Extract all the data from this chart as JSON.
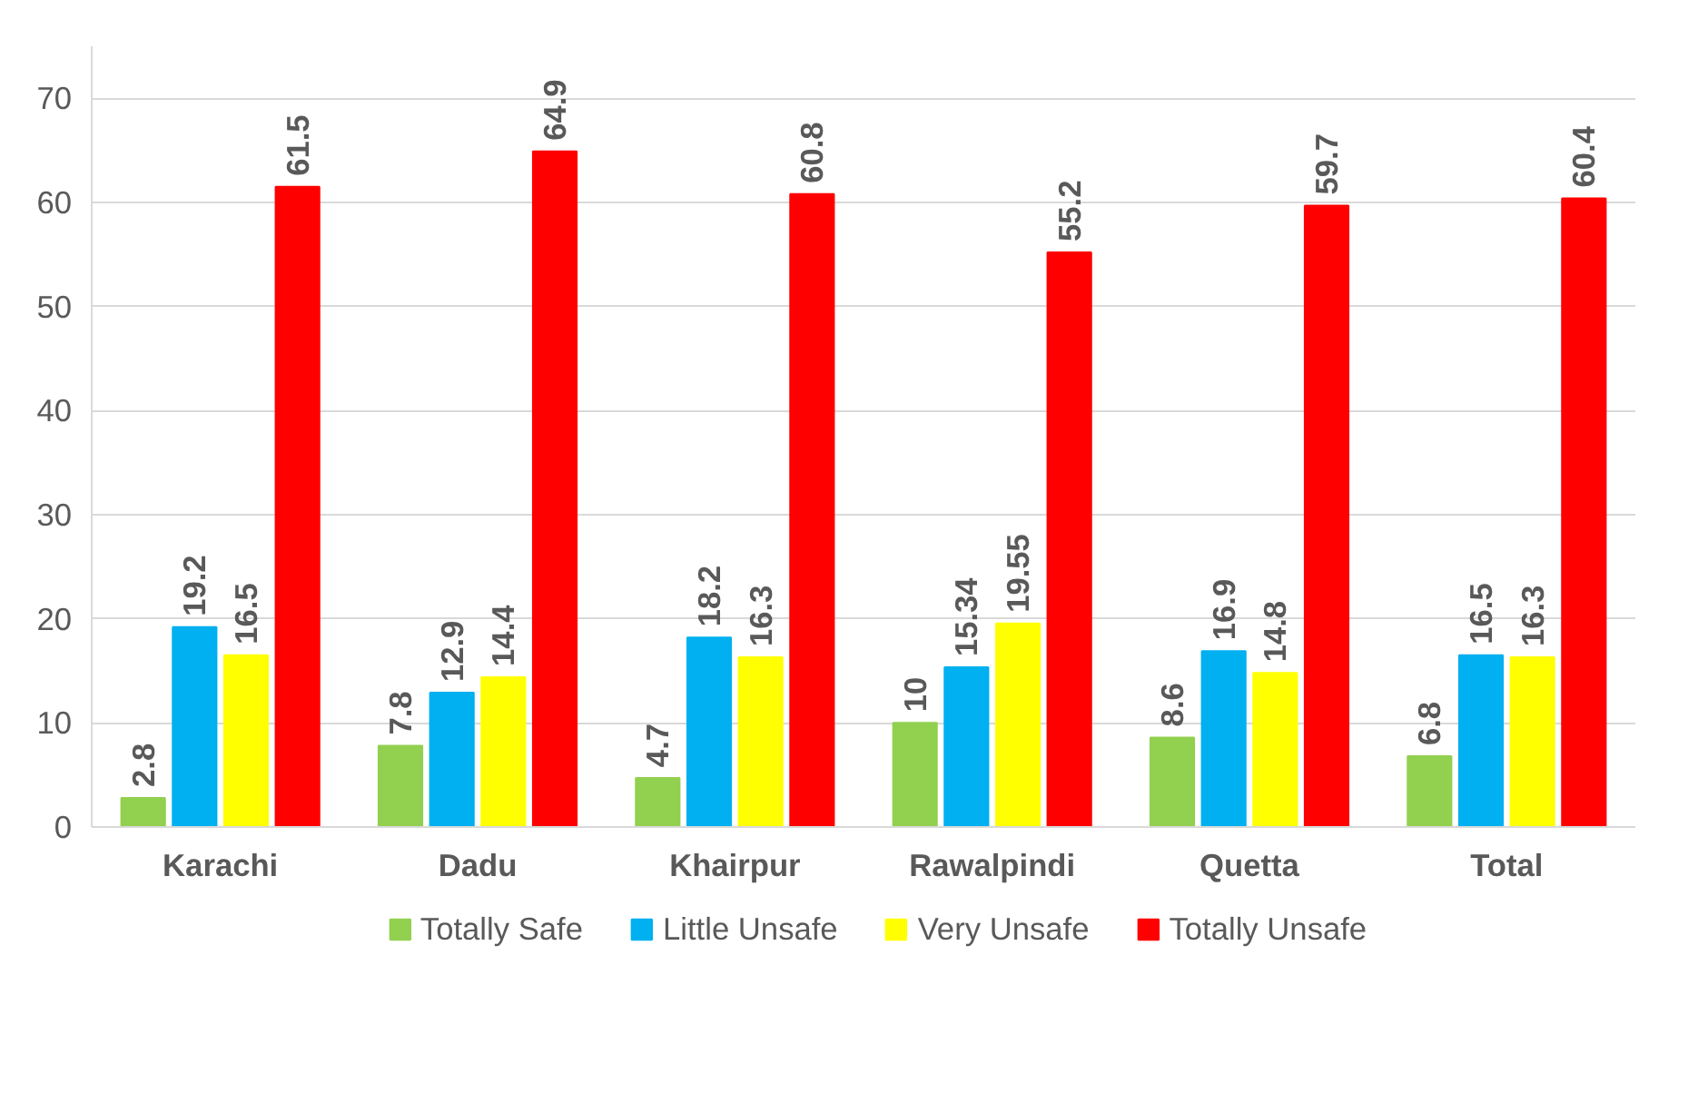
{
  "chart_data": {
    "type": "bar",
    "categories": [
      "Karachi",
      "Dadu",
      "Khairpur",
      "Rawalpindi",
      "Quetta",
      "Total"
    ],
    "series": [
      {
        "name": "Totally Safe",
        "color": "#92d050",
        "values": [
          2.8,
          7.8,
          4.7,
          10,
          8.6,
          6.8
        ]
      },
      {
        "name": "Little Unsafe",
        "color": "#00b0f0",
        "values": [
          19.2,
          12.9,
          18.2,
          15.34,
          16.9,
          16.5
        ]
      },
      {
        "name": "Very Unsafe",
        "color": "#ffff00",
        "values": [
          16.5,
          14.4,
          16.3,
          19.55,
          14.8,
          16.3
        ]
      },
      {
        "name": "Totally Unsafe",
        "color": "#ff0000",
        "values": [
          61.5,
          64.9,
          60.8,
          55.2,
          59.7,
          60.4
        ]
      }
    ],
    "ylim": [
      0,
      75
    ],
    "yticks": [
      0,
      10,
      20,
      30,
      40,
      50,
      60,
      70
    ],
    "grid": "y",
    "legend": "bottom",
    "data_labels": true
  }
}
